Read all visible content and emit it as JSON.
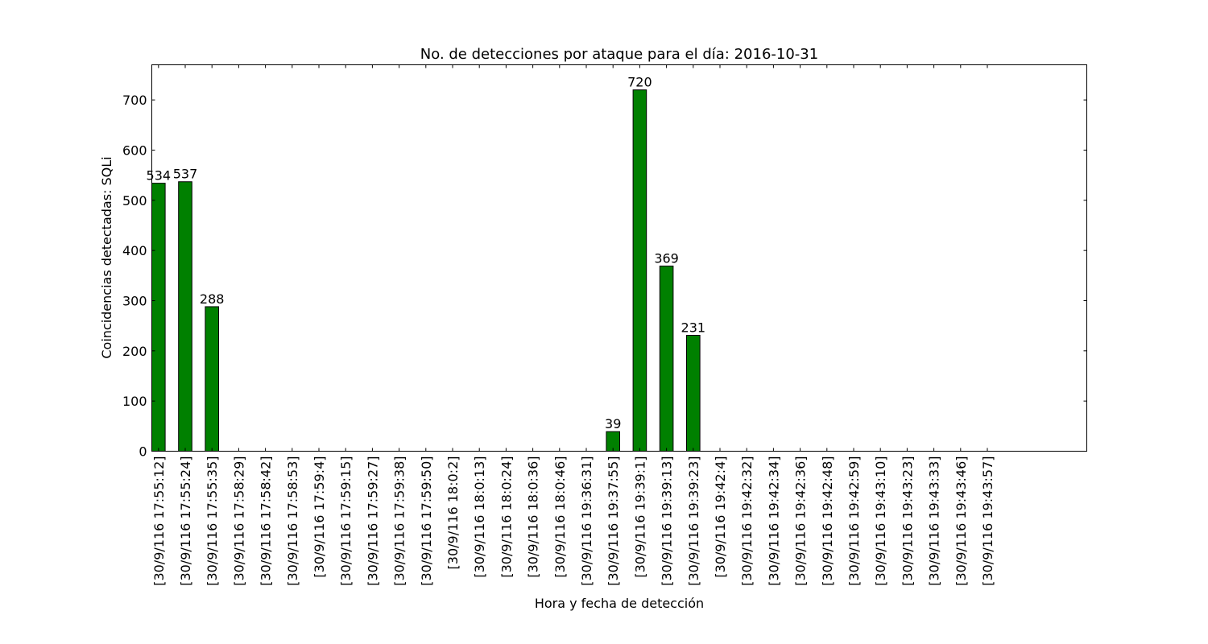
{
  "chart_data": {
    "type": "bar",
    "title": "No. de detecciones por ataque para el día: 2016-10-31",
    "xlabel": "Hora y fecha de detección",
    "ylabel": "Coincidencias detectadas: SQLi",
    "ylim": [
      0,
      770
    ],
    "yticks": [
      0,
      100,
      200,
      300,
      400,
      500,
      600,
      700
    ],
    "grid": false,
    "bar_color": "#008000",
    "categories": [
      "[30/9/116 17:55:12]",
      "[30/9/116 17:55:24]",
      "[30/9/116 17:55:35]",
      "[30/9/116 17:58:29]",
      "[30/9/116 17:58:42]",
      "[30/9/116 17:58:53]",
      "[30/9/116 17:59:4]",
      "[30/9/116 17:59:15]",
      "[30/9/116 17:59:27]",
      "[30/9/116 17:59:38]",
      "[30/9/116 17:59:50]",
      "[30/9/116 18:0:2]",
      "[30/9/116 18:0:13]",
      "[30/9/116 18:0:24]",
      "[30/9/116 18:0:36]",
      "[30/9/116 18:0:46]",
      "[30/9/116 19:36:31]",
      "[30/9/116 19:37:55]",
      "[30/9/116 19:39:1]",
      "[30/9/116 19:39:13]",
      "[30/9/116 19:39:23]",
      "[30/9/116 19:42:4]",
      "[30/9/116 19:42:32]",
      "[30/9/116 19:42:34]",
      "[30/9/116 19:42:36]",
      "[30/9/116 19:42:48]",
      "[30/9/116 19:42:59]",
      "[30/9/116 19:43:10]",
      "[30/9/116 19:43:23]",
      "[30/9/116 19:43:33]",
      "[30/9/116 19:43:46]",
      "[30/9/116 19:43:57]"
    ],
    "values": [
      534,
      537,
      288,
      0,
      0,
      0,
      0,
      0,
      0,
      0,
      0,
      0,
      0,
      0,
      0,
      0,
      0,
      39,
      720,
      369,
      231,
      0,
      0,
      0,
      0,
      0,
      0,
      0,
      0,
      0,
      0,
      0
    ],
    "data_labels": [
      "534",
      "537",
      "288",
      "",
      "",
      "",
      "",
      "",
      "",
      "",
      "",
      "",
      "",
      "",
      "",
      "",
      "",
      "39",
      "720",
      "369",
      "231",
      "",
      "",
      "",
      "",
      "",
      "",
      "",
      "",
      "",
      "",
      ""
    ]
  }
}
